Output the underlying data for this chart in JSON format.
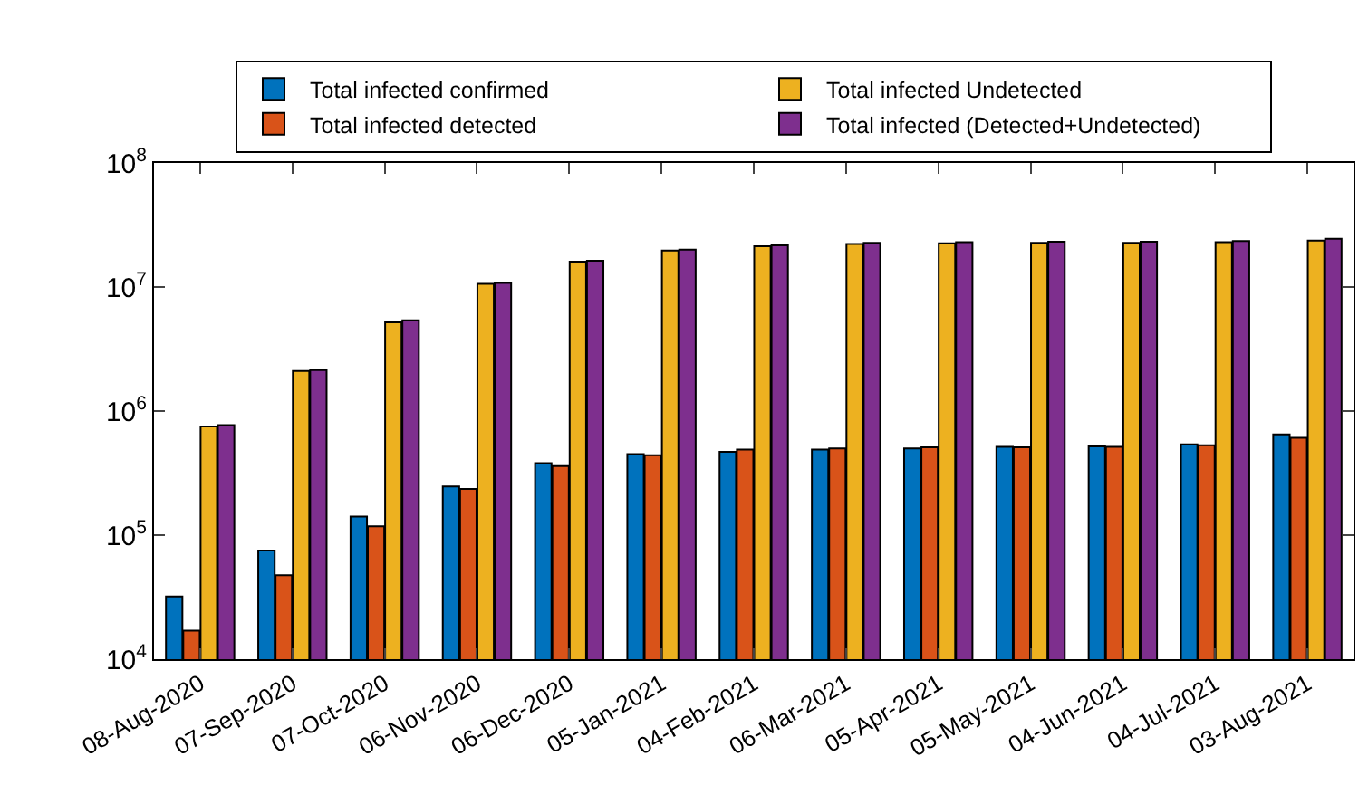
{
  "chart_data": {
    "type": "bar",
    "categories": [
      "08-Aug-2020",
      "07-Sep-2020",
      "07-Oct-2020",
      "06-Nov-2020",
      "06-Dec-2020",
      "05-Jan-2021",
      "04-Feb-2021",
      "06-Mar-2021",
      "05-Apr-2021",
      "05-May-2021",
      "04-Jun-2021",
      "04-Jul-2021",
      "03-Aug-2021"
    ],
    "series": [
      {
        "name": "Total infected confirmed",
        "color": "#0072bd",
        "values": [
          32000,
          75000,
          141000,
          247000,
          380000,
          450000,
          470000,
          490000,
          500000,
          515000,
          520000,
          540000,
          650000
        ]
      },
      {
        "name": "Total infected detected",
        "color": "#d95319",
        "values": [
          17000,
          47500,
          118000,
          236000,
          360000,
          440000,
          490000,
          500000,
          510000,
          510000,
          515000,
          530000,
          610000
        ]
      },
      {
        "name": "Total infected Undetected",
        "color": "#edb120",
        "values": [
          750000,
          2100000,
          5200000,
          10600000,
          16000000,
          19700000,
          21300000,
          22200000,
          22500000,
          22700000,
          22700000,
          23000000,
          23700000
        ]
      },
      {
        "name": "Total infected (Detected+Undetected)",
        "color": "#7e2f8e",
        "values": [
          770000,
          2140000,
          5400000,
          10800000,
          16300000,
          20000000,
          21700000,
          22700000,
          23000000,
          23200000,
          23200000,
          23500000,
          24500000
        ]
      }
    ],
    "log": "y",
    "ylim": [
      10000,
      100000000
    ],
    "yticks": [
      {
        "value": 10000,
        "label": "10$^{4}$"
      },
      {
        "value": 100000,
        "label": "10$^{5}$"
      },
      {
        "value": 1000000,
        "label": "10$^{6}$"
      },
      {
        "value": 10000000,
        "label": "10$^{7}$"
      },
      {
        "value": 100000000,
        "label": "10$^{8}$"
      }
    ],
    "legend": "top"
  }
}
